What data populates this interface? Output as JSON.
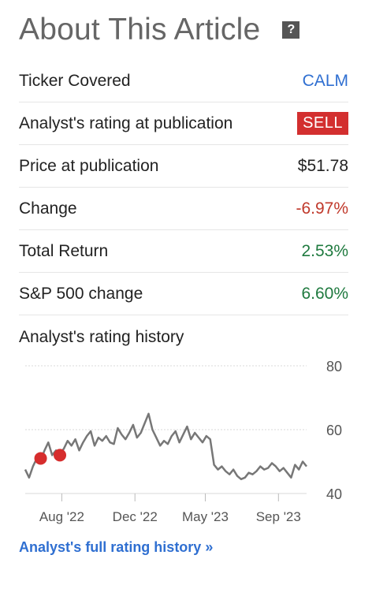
{
  "header": {
    "title": "About This Article",
    "help_symbol": "?"
  },
  "rows": [
    {
      "label": "Ticker Covered",
      "value": "CALM",
      "style": "link"
    },
    {
      "label": "Analyst's rating at publication",
      "value": "SELL",
      "style": "badge"
    },
    {
      "label": "Price at publication",
      "value": "$51.78",
      "style": "plain"
    },
    {
      "label": "Change",
      "value": "-6.97%",
      "style": "neg"
    },
    {
      "label": "Total Return",
      "value": "2.53%",
      "style": "pos"
    },
    {
      "label": "S&P 500 change",
      "value": "6.60%",
      "style": "pos"
    }
  ],
  "history": {
    "title": "Analyst's rating history",
    "full_link": "Analyst's full rating history »"
  },
  "colors": {
    "link": "#2f6fd1",
    "negative": "#c0392b",
    "positive": "#1f7a3f",
    "sell": "#d32f2f",
    "line": "#777777",
    "marker": "#d62d2d"
  },
  "chart_data": {
    "type": "line",
    "ylim": [
      40,
      80
    ],
    "y_ticks": [
      "80",
      "60",
      "40"
    ],
    "x_ticks": [
      "Aug '22",
      "Dec '22",
      "May '23",
      "Sep '23"
    ],
    "series": [
      {
        "values": [
          47.5,
          45.0,
          48.5,
          51.0,
          50.5,
          53.5,
          56.0,
          52.0,
          53.5,
          52.5,
          54.0,
          56.5,
          55.0,
          57.0,
          53.5,
          56.0,
          58.0,
          59.5,
          55.0,
          57.5,
          56.5,
          58.0,
          56.0,
          55.5,
          60.5,
          58.5,
          57.0,
          59.0,
          61.5,
          57.5,
          59.0,
          62.0,
          65.0,
          60.0,
          57.5,
          55.0,
          56.5,
          55.5,
          58.0,
          59.5,
          56.0,
          58.5,
          61.0,
          57.0,
          59.0,
          57.5,
          56.0,
          58.0,
          57.0,
          49.0,
          47.5,
          48.5,
          47.0,
          46.0,
          47.5,
          45.5,
          44.5,
          45.0,
          46.5,
          46.0,
          47.0,
          48.5,
          47.5,
          48.0,
          49.5,
          48.5,
          47.0,
          48.0,
          46.5,
          45.0,
          49.0,
          47.5,
          50.0,
          48.5
        ]
      },
      {
        "name": "SELL ratings",
        "x_index": [
          4,
          9
        ],
        "values": [
          51.0,
          52.0
        ]
      }
    ]
  }
}
